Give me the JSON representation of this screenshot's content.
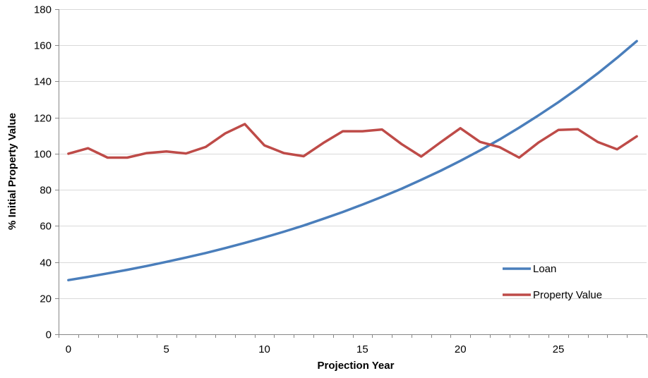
{
  "chart_data": {
    "type": "line",
    "title": "",
    "xlabel": "Projection Year",
    "ylabel": "% Initial Property Value",
    "xlim": [
      -0.5,
      29.5
    ],
    "ylim": [
      0,
      180
    ],
    "xticks": [
      0,
      5,
      10,
      15,
      20,
      25
    ],
    "yticks": [
      0,
      20,
      40,
      60,
      80,
      100,
      120,
      140,
      160,
      180
    ],
    "grid": "horizontal",
    "legend": "bottom-right",
    "x": [
      0,
      1,
      2,
      3,
      4,
      5,
      6,
      7,
      8,
      9,
      10,
      11,
      12,
      13,
      14,
      15,
      16,
      17,
      18,
      19,
      20,
      21,
      22,
      23,
      24,
      25,
      26,
      27,
      28,
      29
    ],
    "series": [
      {
        "name": "Loan",
        "color": "#4a7ebb",
        "values": [
          30,
          31.8,
          33.7,
          35.7,
          37.8,
          40.1,
          42.5,
          45,
          47.7,
          50.6,
          53.6,
          56.8,
          60.2,
          63.9,
          67.7,
          71.8,
          76.1,
          80.6,
          85.5,
          90.6,
          96,
          101.8,
          107.9,
          114.4,
          121.3,
          128.5,
          136.2,
          144.4,
          153.1,
          162.3
        ]
      },
      {
        "name": "Property Value",
        "color": "#be4b48",
        "values": [
          100,
          103,
          97.8,
          97.8,
          100.3,
          101.2,
          100.1,
          103.7,
          111.2,
          116.4,
          104.6,
          100.3,
          98.6,
          105.9,
          112.4,
          112.4,
          113.4,
          105.3,
          98.4,
          106.4,
          114.1,
          106.5,
          103.6,
          97.8,
          106.3,
          113.1,
          113.5,
          106.5,
          102.4,
          109.6
        ]
      }
    ]
  }
}
